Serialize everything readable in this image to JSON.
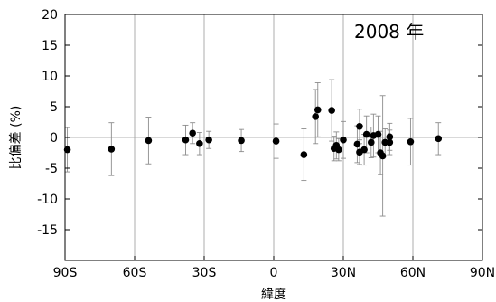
{
  "chart_data": {
    "type": "scatter",
    "annotation": "2008 年",
    "xlabel": "緯度",
    "ylabel": "比偏差 (%)",
    "xlim": [
      -90,
      90
    ],
    "ylim": [
      -20,
      20
    ],
    "grid": true,
    "x_ticks": [
      {
        "value": -90,
        "label": "90S"
      },
      {
        "value": -60,
        "label": "60S"
      },
      {
        "value": -30,
        "label": "30S"
      },
      {
        "value": 0,
        "label": "0"
      },
      {
        "value": 30,
        "label": "30N"
      },
      {
        "value": 60,
        "label": "60N"
      },
      {
        "value": 90,
        "label": "90N"
      }
    ],
    "y_ticks": [
      {
        "value": 20,
        "label": "20"
      },
      {
        "value": 15,
        "label": "15"
      },
      {
        "value": 10,
        "label": "10"
      },
      {
        "value": 5,
        "label": "5"
      },
      {
        "value": 0,
        "label": "0"
      },
      {
        "value": -5,
        "label": "-5"
      },
      {
        "value": -10,
        "label": "-10"
      },
      {
        "value": -15,
        "label": "-15"
      }
    ],
    "points": [
      {
        "x": -89,
        "y": -2.0,
        "err": 3.6
      },
      {
        "x": -70,
        "y": -1.9,
        "err": 4.3
      },
      {
        "x": -54,
        "y": -0.5,
        "err": 3.8
      },
      {
        "x": -38,
        "y": -0.4,
        "err": 2.4
      },
      {
        "x": -35,
        "y": 0.7,
        "err": 1.7
      },
      {
        "x": -32,
        "y": -1.0,
        "err": 1.8
      },
      {
        "x": -28,
        "y": -0.4,
        "err": 1.4
      },
      {
        "x": -14,
        "y": -0.5,
        "err": 1.8
      },
      {
        "x": 1,
        "y": -0.6,
        "err": 2.8
      },
      {
        "x": 13,
        "y": -2.8,
        "err": 4.2
      },
      {
        "x": 18,
        "y": 3.4,
        "err": 4.4
      },
      {
        "x": 19,
        "y": 4.5,
        "err": 4.4
      },
      {
        "x": 25,
        "y": 4.4,
        "err": 5.0
      },
      {
        "x": 26,
        "y": -1.8,
        "err": 2.0
      },
      {
        "x": 27,
        "y": -1.3,
        "err": 2.2
      },
      {
        "x": 28,
        "y": -2.0,
        "err": 1.8
      },
      {
        "x": 30,
        "y": -0.4,
        "err": 3.0
      },
      {
        "x": 36,
        "y": -1.1,
        "err": 3.0
      },
      {
        "x": 37,
        "y": 1.8,
        "err": 2.8
      },
      {
        "x": 37,
        "y": -2.4,
        "err": 2.0
      },
      {
        "x": 39,
        "y": -2.0,
        "err": 2.5
      },
      {
        "x": 40,
        "y": 0.5,
        "err": 3.0
      },
      {
        "x": 42,
        "y": -0.8,
        "err": 2.5
      },
      {
        "x": 43,
        "y": 0.3,
        "err": 3.5
      },
      {
        "x": 45,
        "y": 0.5,
        "err": 3.0
      },
      {
        "x": 46,
        "y": -2.5,
        "err": 3.5
      },
      {
        "x": 47,
        "y": -3.0,
        "err": 9.8
      },
      {
        "x": 48,
        "y": -0.8,
        "err": 2.2
      },
      {
        "x": 50,
        "y": 0.1,
        "err": 2.2
      },
      {
        "x": 50,
        "y": -0.8,
        "err": 2.0
      },
      {
        "x": 59,
        "y": -0.7,
        "err": 3.8
      },
      {
        "x": 71,
        "y": -0.2,
        "err": 2.6
      }
    ]
  }
}
